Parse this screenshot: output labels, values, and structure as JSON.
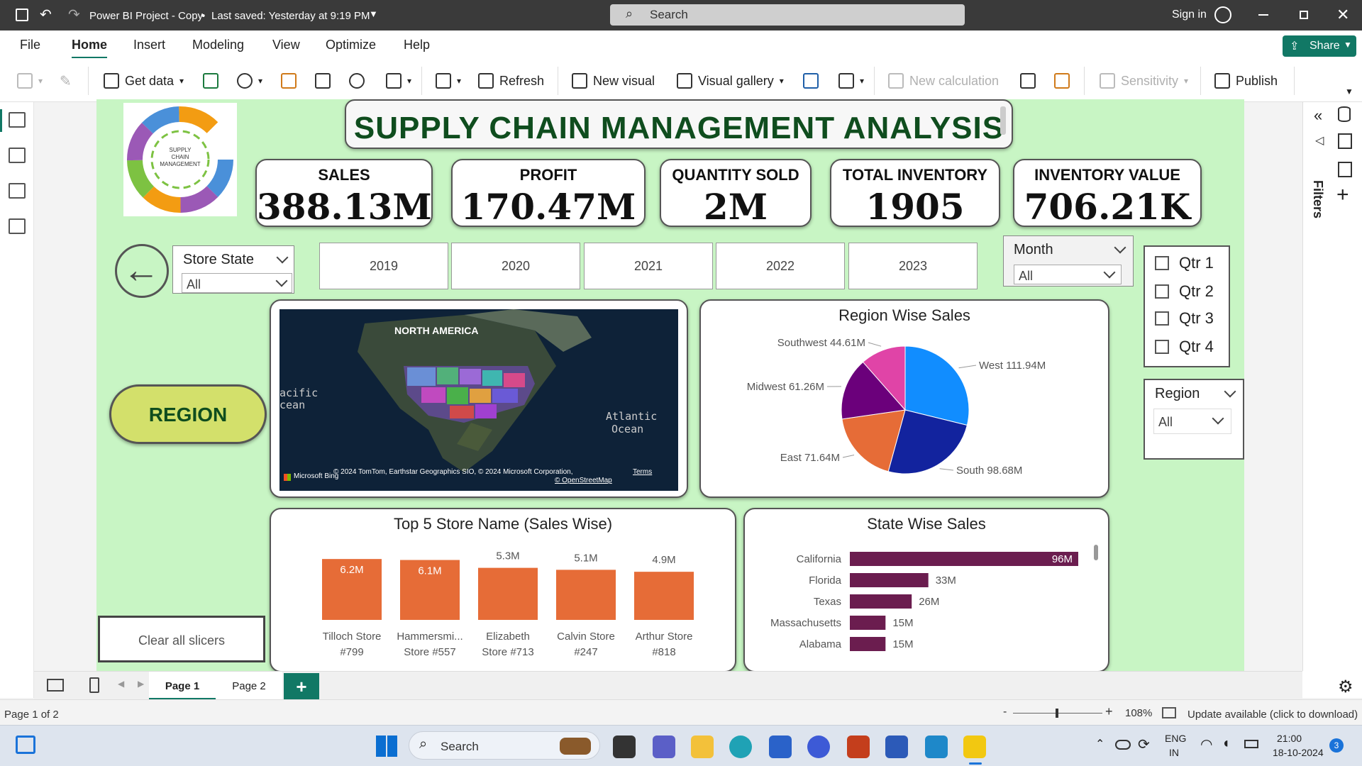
{
  "titlebar": {
    "doc_title": "Power BI Project - Copy",
    "saved": "Last saved: Yesterday at 9:19 PM",
    "search_placeholder": "Search",
    "signin": "Sign in"
  },
  "menu": {
    "items": [
      "File",
      "Home",
      "Insert",
      "Modeling",
      "View",
      "Optimize",
      "Help"
    ],
    "active": "Home",
    "share": "Share"
  },
  "ribbon": {
    "get_data": "Get data",
    "refresh": "Refresh",
    "new_visual": "New visual",
    "visual_gallery": "Visual gallery",
    "new_calculation": "New calculation",
    "sensitivity": "Sensitivity",
    "publish": "Publish"
  },
  "report": {
    "title": "SUPPLY CHAIN MANAGEMENT ANALYSIS",
    "logo_text": [
      "SUPPLY",
      "CHAIN",
      "MANAGEMENT"
    ],
    "kpis": [
      {
        "label": "SALES",
        "value": "388.13M"
      },
      {
        "label": "PROFIT",
        "value": "170.47M"
      },
      {
        "label": "QUANTITY SOLD",
        "value": "2M"
      },
      {
        "label": "TOTAL INVENTORY",
        "value": "1905"
      },
      {
        "label": "INVENTORY VALUE",
        "value": "706.21K"
      }
    ],
    "store_state": {
      "header": "Store State",
      "value": "All"
    },
    "years": [
      "2019",
      "2020",
      "2021",
      "2022",
      "2023"
    ],
    "month": {
      "header": "Month",
      "value": "All"
    },
    "quarters": [
      "Qtr 1",
      "Qtr 2",
      "Qtr 3",
      "Qtr 4"
    ],
    "region_button": "REGION",
    "region_slicer": {
      "header": "Region",
      "value": "All"
    },
    "clear_slicers": "Clear all slicers",
    "map": {
      "label_continent": "NORTH AMERICA",
      "label_pacific": "acific\ncean",
      "label_atlantic": "Atlantic",
      "label_atlantic2": "Ocean",
      "bing": "Microsoft Bing",
      "credit": "© 2024 TomTom, Earthstar Geographics SIO, © 2024 Microsoft Corporation,",
      "terms": "Terms",
      "osm": "© OpenStreetMap"
    }
  },
  "chart_data": [
    {
      "type": "pie",
      "title": "Region Wise Sales",
      "categories": [
        "West",
        "South",
        "East",
        "Midwest",
        "Southwest"
      ],
      "values": [
        111.94,
        98.68,
        71.64,
        61.26,
        44.61
      ],
      "labels": [
        "West 111.94M",
        "South 98.68M",
        "East 71.64M",
        "Midwest 61.26M",
        "Southwest 44.61M"
      ],
      "colors": [
        "#118dff",
        "#12239e",
        "#e66c37",
        "#6b007b",
        "#e044a7"
      ]
    },
    {
      "type": "bar",
      "title": "Top 5 Store Name (Sales Wise)",
      "categories": [
        "Tilloch Store #799",
        "Hammersmi... Store #557",
        "Elizabeth Store #713",
        "Calvin Store #247",
        "Arthur Store #818"
      ],
      "category_lines": [
        [
          "Tilloch Store",
          "#799"
        ],
        [
          "Hammersmi...",
          "Store #557"
        ],
        [
          "Elizabeth",
          "Store #713"
        ],
        [
          "Calvin Store",
          "#247"
        ],
        [
          "Arthur Store",
          "#818"
        ]
      ],
      "values": [
        6.2,
        6.1,
        5.3,
        5.1,
        4.9
      ],
      "data_labels": [
        "6.2M",
        "6.1M",
        "5.3M",
        "5.1M",
        "4.9M"
      ],
      "color": "#e66c37"
    },
    {
      "type": "bar",
      "orientation": "horizontal",
      "title": "State Wise Sales",
      "categories": [
        "California",
        "Florida",
        "Texas",
        "Massachusetts",
        "Alabama"
      ],
      "values": [
        96,
        33,
        26,
        15,
        15
      ],
      "data_labels": [
        "96M",
        "33M",
        "26M",
        "15M",
        "15M"
      ],
      "color": "#6b1d4f"
    }
  ],
  "pages": {
    "tabs": [
      "Page 1",
      "Page 2"
    ],
    "active": "Page 1",
    "add": "+"
  },
  "status": {
    "page": "Page 1 of 2",
    "zoom": "108%",
    "update": "Update available (click to download)"
  },
  "taskbar": {
    "search": "Search",
    "lang1": "ENG",
    "lang2": "IN",
    "time": "21:00",
    "date": "18-10-2024",
    "badge": "3"
  },
  "filters_label": "Filters"
}
